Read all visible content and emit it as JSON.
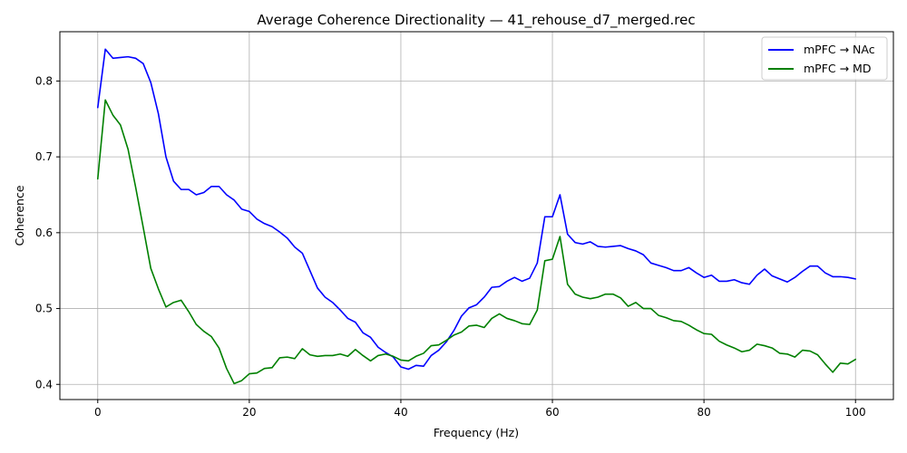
{
  "chart_data": {
    "type": "line",
    "title": "Average Coherence Directionality — 41_rehouse_d7_merged.rec",
    "xlabel": "Frequency (Hz)",
    "ylabel": "Coherence",
    "xlim": [
      -5,
      105
    ],
    "ylim": [
      0.38,
      0.865
    ],
    "xticks": [
      0,
      20,
      40,
      60,
      80,
      100
    ],
    "yticks": [
      0.4,
      0.5,
      0.6,
      0.7,
      0.8
    ],
    "xtick_labels": [
      "0",
      "20",
      "40",
      "60",
      "80",
      "100"
    ],
    "ytick_labels": [
      "0.4",
      "0.5",
      "0.6",
      "0.7",
      "0.8"
    ],
    "grid": true,
    "legend_position": "top-right",
    "series": [
      {
        "name": "mPFC → NAc",
        "color": "#0000ff",
        "x": [
          0,
          1,
          2,
          3,
          4,
          5,
          6,
          7,
          8,
          9,
          10,
          11,
          12,
          13,
          14,
          15,
          16,
          17,
          18,
          19,
          20,
          21,
          22,
          23,
          24,
          25,
          26,
          27,
          28,
          29,
          30,
          31,
          32,
          33,
          34,
          35,
          36,
          37,
          38,
          39,
          40,
          41,
          42,
          43,
          44,
          45,
          46,
          47,
          48,
          49,
          50,
          51,
          52,
          53,
          54,
          55,
          56,
          57,
          58,
          59,
          60,
          61,
          62,
          63,
          64,
          65,
          66,
          67,
          68,
          69,
          70,
          71,
          72,
          73,
          74,
          75,
          76,
          77,
          78,
          79,
          80,
          81,
          82,
          83,
          84,
          85,
          86,
          87,
          88,
          89,
          90,
          91,
          92,
          93,
          94,
          95,
          96,
          97,
          98,
          99,
          100
        ],
        "y": [
          0.765,
          0.842,
          0.83,
          0.831,
          0.832,
          0.83,
          0.823,
          0.798,
          0.757,
          0.7,
          0.668,
          0.657,
          0.657,
          0.65,
          0.653,
          0.661,
          0.661,
          0.65,
          0.643,
          0.631,
          0.628,
          0.618,
          0.612,
          0.608,
          0.601,
          0.593,
          0.581,
          0.573,
          0.55,
          0.527,
          0.515,
          0.508,
          0.498,
          0.487,
          0.482,
          0.468,
          0.462,
          0.449,
          0.442,
          0.436,
          0.423,
          0.42,
          0.425,
          0.424,
          0.438,
          0.445,
          0.456,
          0.471,
          0.49,
          0.501,
          0.505,
          0.515,
          0.528,
          0.529,
          0.536,
          0.541,
          0.536,
          0.54,
          0.56,
          0.621,
          0.621,
          0.65,
          0.598,
          0.587,
          0.585,
          0.588,
          0.582,
          0.581,
          0.582,
          0.583,
          0.579,
          0.576,
          0.571,
          0.56,
          0.557,
          0.554,
          0.55,
          0.55,
          0.554,
          0.547,
          0.541,
          0.544,
          0.536,
          0.536,
          0.538,
          0.534,
          0.532,
          0.544,
          0.552,
          0.543,
          0.539,
          0.535,
          0.541,
          0.549,
          0.556,
          0.556,
          0.547,
          0.542,
          0.542,
          0.541,
          0.539
        ]
      },
      {
        "name": "mPFC → MD",
        "color": "#008000",
        "x": [
          0,
          1,
          2,
          3,
          4,
          5,
          6,
          7,
          8,
          9,
          10,
          11,
          12,
          13,
          14,
          15,
          16,
          17,
          18,
          19,
          20,
          21,
          22,
          23,
          24,
          25,
          26,
          27,
          28,
          29,
          30,
          31,
          32,
          33,
          34,
          35,
          36,
          37,
          38,
          39,
          40,
          41,
          42,
          43,
          44,
          45,
          46,
          47,
          48,
          49,
          50,
          51,
          52,
          53,
          54,
          55,
          56,
          57,
          58,
          59,
          60,
          61,
          62,
          63,
          64,
          65,
          66,
          67,
          68,
          69,
          70,
          71,
          72,
          73,
          74,
          75,
          76,
          77,
          78,
          79,
          80,
          81,
          82,
          83,
          84,
          85,
          86,
          87,
          88,
          89,
          90,
          91,
          92,
          93,
          94,
          95,
          96,
          97,
          98,
          99,
          100
        ],
        "y": [
          0.671,
          0.775,
          0.755,
          0.742,
          0.71,
          0.66,
          0.607,
          0.553,
          0.526,
          0.502,
          0.508,
          0.511,
          0.496,
          0.479,
          0.47,
          0.463,
          0.448,
          0.421,
          0.401,
          0.405,
          0.414,
          0.415,
          0.421,
          0.422,
          0.435,
          0.436,
          0.434,
          0.447,
          0.439,
          0.437,
          0.438,
          0.438,
          0.44,
          0.437,
          0.446,
          0.438,
          0.431,
          0.438,
          0.44,
          0.437,
          0.432,
          0.431,
          0.437,
          0.441,
          0.451,
          0.452,
          0.458,
          0.465,
          0.469,
          0.477,
          0.478,
          0.475,
          0.487,
          0.493,
          0.487,
          0.484,
          0.48,
          0.479,
          0.498,
          0.563,
          0.565,
          0.595,
          0.532,
          0.519,
          0.515,
          0.513,
          0.515,
          0.519,
          0.519,
          0.514,
          0.503,
          0.508,
          0.5,
          0.5,
          0.491,
          0.488,
          0.484,
          0.483,
          0.478,
          0.472,
          0.467,
          0.466,
          0.457,
          0.452,
          0.448,
          0.443,
          0.445,
          0.453,
          0.451,
          0.448,
          0.441,
          0.44,
          0.436,
          0.445,
          0.444,
          0.439,
          0.427,
          0.416,
          0.428,
          0.427,
          0.433
        ]
      }
    ]
  }
}
